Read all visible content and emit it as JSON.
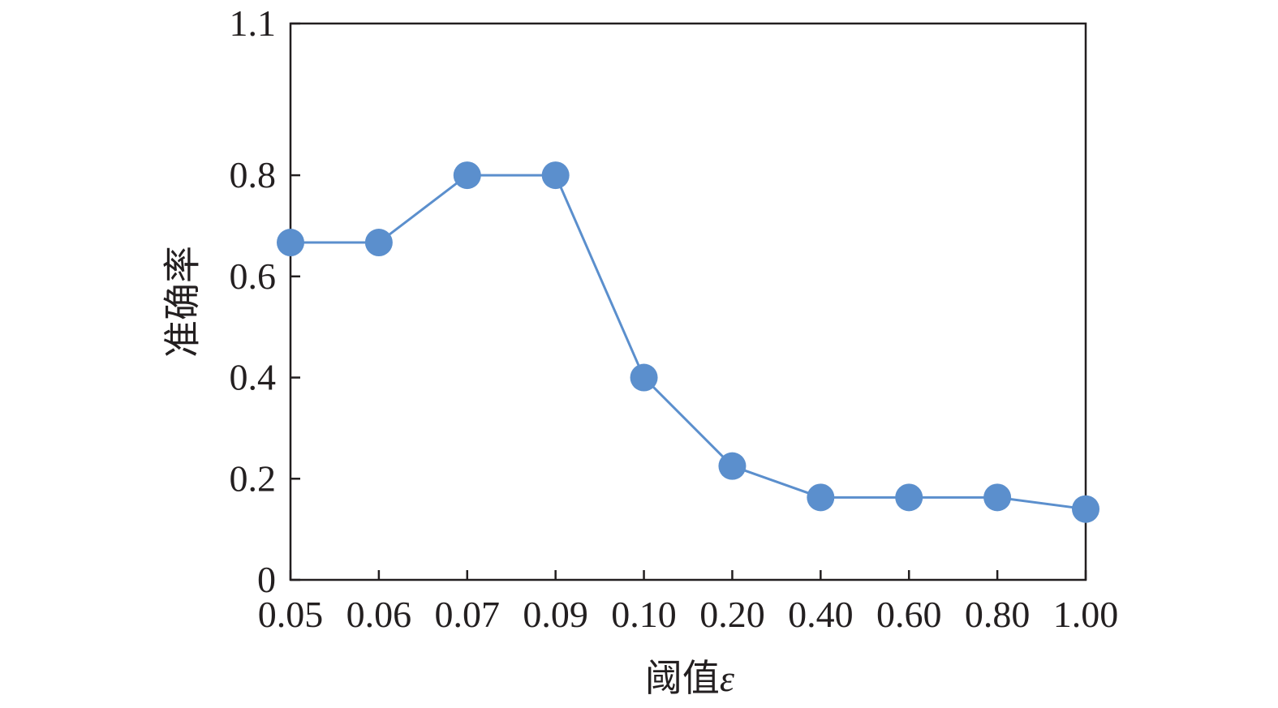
{
  "chart_data": {
    "type": "line",
    "title": "",
    "xlabel": "阈值",
    "xlabel_symbol": "ε",
    "ylabel": "准确率",
    "categories": [
      "0.05",
      "0.06",
      "0.07",
      "0.09",
      "0.10",
      "0.20",
      "0.40",
      "0.60",
      "0.80",
      "1.00"
    ],
    "series": [
      {
        "values": [
          0.667,
          0.667,
          0.8,
          0.8,
          0.4,
          0.225,
          0.163,
          0.163,
          0.163,
          0.14
        ],
        "color": "#5b8fcd"
      }
    ],
    "ylim": [
      0,
      1.1
    ],
    "yticks": [
      {
        "value": 0,
        "label": "0"
      },
      {
        "value": 0.2,
        "label": "0.2"
      },
      {
        "value": 0.4,
        "label": "0.4"
      },
      {
        "value": 0.6,
        "label": "0.6"
      },
      {
        "value": 0.8,
        "label": "0.8"
      },
      {
        "value": 1.1,
        "label": "1.1"
      }
    ],
    "grid": false,
    "legend": "none"
  }
}
